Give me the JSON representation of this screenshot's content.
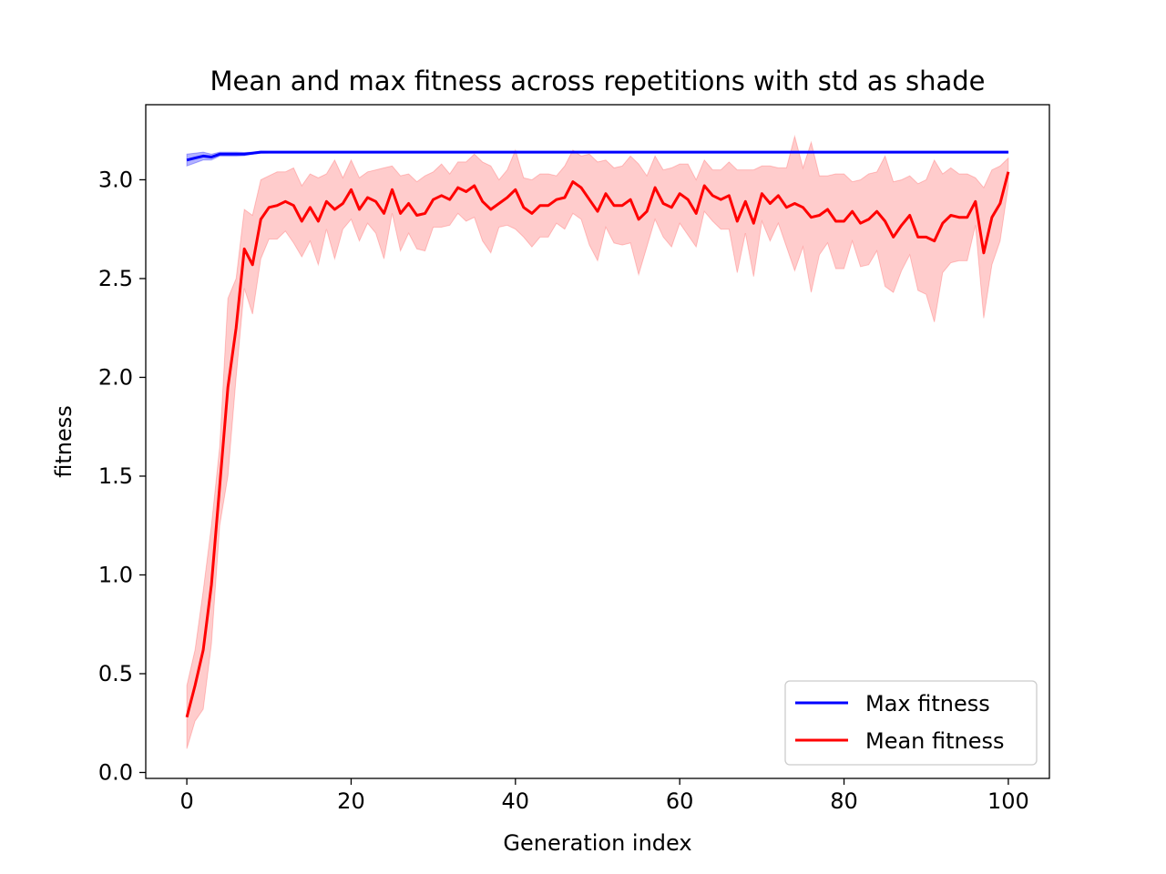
{
  "chart_data": {
    "type": "line",
    "title": "Mean and max fitness across repetitions with std as shade",
    "xlabel": "Generation index",
    "ylabel": "fitness",
    "xlim": [
      -5,
      105
    ],
    "ylim": [
      -0.03,
      3.38
    ],
    "xticks": [
      0,
      20,
      40,
      60,
      80,
      100
    ],
    "yticks": [
      0.0,
      0.5,
      1.0,
      1.5,
      2.0,
      2.5,
      3.0
    ],
    "xtick_labels": [
      "0",
      "20",
      "40",
      "60",
      "80",
      "100"
    ],
    "ytick_labels": [
      "0.0",
      "0.5",
      "1.0",
      "1.5",
      "2.0",
      "2.5",
      "3.0"
    ],
    "grid": false,
    "legend_position": "lower-right",
    "x": [
      0,
      1,
      2,
      3,
      4,
      5,
      6,
      7,
      8,
      9,
      10,
      11,
      12,
      13,
      14,
      15,
      16,
      17,
      18,
      19,
      20,
      21,
      22,
      23,
      24,
      25,
      26,
      27,
      28,
      29,
      30,
      31,
      32,
      33,
      34,
      35,
      36,
      37,
      38,
      39,
      40,
      41,
      42,
      43,
      44,
      45,
      46,
      47,
      48,
      49,
      50,
      51,
      52,
      53,
      54,
      55,
      56,
      57,
      58,
      59,
      60,
      61,
      62,
      63,
      64,
      65,
      66,
      67,
      68,
      69,
      70,
      71,
      72,
      73,
      74,
      75,
      76,
      77,
      78,
      79,
      80,
      81,
      82,
      83,
      84,
      85,
      86,
      87,
      88,
      89,
      90,
      91,
      92,
      93,
      94,
      95,
      96,
      97,
      98,
      99,
      100
    ],
    "series": [
      {
        "name": "Max fitness",
        "color": "#0000ff",
        "values": [
          3.1,
          3.11,
          3.12,
          3.115,
          3.13,
          3.13,
          3.13,
          3.13,
          3.135,
          3.14,
          3.14,
          3.14,
          3.14,
          3.14,
          3.14,
          3.14,
          3.14,
          3.14,
          3.14,
          3.14,
          3.14,
          3.14,
          3.14,
          3.14,
          3.14,
          3.14,
          3.14,
          3.14,
          3.14,
          3.14,
          3.14,
          3.14,
          3.14,
          3.14,
          3.14,
          3.14,
          3.14,
          3.14,
          3.14,
          3.14,
          3.14,
          3.14,
          3.14,
          3.14,
          3.14,
          3.14,
          3.14,
          3.14,
          3.14,
          3.14,
          3.14,
          3.14,
          3.14,
          3.14,
          3.14,
          3.14,
          3.14,
          3.14,
          3.14,
          3.14,
          3.14,
          3.14,
          3.14,
          3.14,
          3.14,
          3.14,
          3.14,
          3.14,
          3.14,
          3.14,
          3.14,
          3.14,
          3.14,
          3.14,
          3.14,
          3.14,
          3.14,
          3.14,
          3.14,
          3.14,
          3.14,
          3.14,
          3.14,
          3.14,
          3.14,
          3.14,
          3.14,
          3.14,
          3.14,
          3.14,
          3.14,
          3.14,
          3.14,
          3.14,
          3.14,
          3.14,
          3.14,
          3.14,
          3.14,
          3.14,
          3.14
        ],
        "std": [
          0.03,
          0.025,
          0.02,
          0.015,
          0.01,
          0.01,
          0.01,
          0.008,
          0.005,
          0.005,
          0.004,
          0.004,
          0.004,
          0.004,
          0.004,
          0.004,
          0.004,
          0.004,
          0.004,
          0.004,
          0.004,
          0.004,
          0.004,
          0.004,
          0.004,
          0.004,
          0.004,
          0.004,
          0.004,
          0.004,
          0.004,
          0.004,
          0.004,
          0.004,
          0.004,
          0.004,
          0.004,
          0.004,
          0.004,
          0.004,
          0.004,
          0.004,
          0.004,
          0.004,
          0.004,
          0.004,
          0.004,
          0.004,
          0.004,
          0.004,
          0.004,
          0.004,
          0.004,
          0.004,
          0.004,
          0.004,
          0.004,
          0.004,
          0.004,
          0.004,
          0.004,
          0.004,
          0.004,
          0.004,
          0.004,
          0.004,
          0.004,
          0.004,
          0.004,
          0.004,
          0.004,
          0.004,
          0.004,
          0.004,
          0.004,
          0.004,
          0.004,
          0.004,
          0.004,
          0.004,
          0.004,
          0.004,
          0.004,
          0.004,
          0.004,
          0.004,
          0.004,
          0.004,
          0.004,
          0.004,
          0.004,
          0.004,
          0.004,
          0.004,
          0.004,
          0.004,
          0.004,
          0.004,
          0.004,
          0.004,
          0.004
        ]
      },
      {
        "name": "Mean fitness",
        "color": "#ff0000",
        "values": [
          0.28,
          0.44,
          0.62,
          0.95,
          1.45,
          1.95,
          2.25,
          2.65,
          2.57,
          2.8,
          2.86,
          2.87,
          2.89,
          2.87,
          2.79,
          2.86,
          2.79,
          2.89,
          2.85,
          2.88,
          2.95,
          2.85,
          2.91,
          2.89,
          2.83,
          2.95,
          2.83,
          2.88,
          2.82,
          2.83,
          2.9,
          2.92,
          2.9,
          2.96,
          2.94,
          2.97,
          2.89,
          2.85,
          2.88,
          2.91,
          2.95,
          2.86,
          2.83,
          2.87,
          2.87,
          2.9,
          2.91,
          2.99,
          2.96,
          2.9,
          2.84,
          2.93,
          2.87,
          2.87,
          2.9,
          2.8,
          2.84,
          2.96,
          2.88,
          2.86,
          2.93,
          2.9,
          2.83,
          2.97,
          2.92,
          2.9,
          2.92,
          2.79,
          2.89,
          2.78,
          2.93,
          2.88,
          2.92,
          2.86,
          2.88,
          2.86,
          2.81,
          2.82,
          2.85,
          2.79,
          2.79,
          2.84,
          2.78,
          2.8,
          2.84,
          2.79,
          2.71,
          2.77,
          2.82,
          2.71,
          2.71,
          2.69,
          2.78,
          2.82,
          2.81,
          2.81,
          2.89,
          2.63,
          2.81,
          2.88,
          3.04
        ],
        "std": [
          0.16,
          0.18,
          0.3,
          0.3,
          0.2,
          0.45,
          0.25,
          0.2,
          0.25,
          0.2,
          0.16,
          0.17,
          0.15,
          0.19,
          0.18,
          0.17,
          0.22,
          0.14,
          0.25,
          0.13,
          0.15,
          0.16,
          0.13,
          0.16,
          0.23,
          0.12,
          0.19,
          0.15,
          0.17,
          0.19,
          0.14,
          0.16,
          0.13,
          0.13,
          0.15,
          0.16,
          0.2,
          0.22,
          0.12,
          0.14,
          0.2,
          0.15,
          0.17,
          0.16,
          0.16,
          0.12,
          0.16,
          0.16,
          0.16,
          0.23,
          0.25,
          0.17,
          0.19,
          0.2,
          0.22,
          0.28,
          0.18,
          0.16,
          0.17,
          0.2,
          0.15,
          0.18,
          0.17,
          0.13,
          0.13,
          0.15,
          0.17,
          0.26,
          0.16,
          0.27,
          0.14,
          0.19,
          0.14,
          0.2,
          0.34,
          0.2,
          0.38,
          0.2,
          0.17,
          0.24,
          0.24,
          0.15,
          0.22,
          0.23,
          0.2,
          0.33,
          0.28,
          0.23,
          0.2,
          0.27,
          0.29,
          0.41,
          0.25,
          0.24,
          0.22,
          0.22,
          0.12,
          0.33,
          0.24,
          0.19,
          0.07
        ]
      }
    ]
  }
}
